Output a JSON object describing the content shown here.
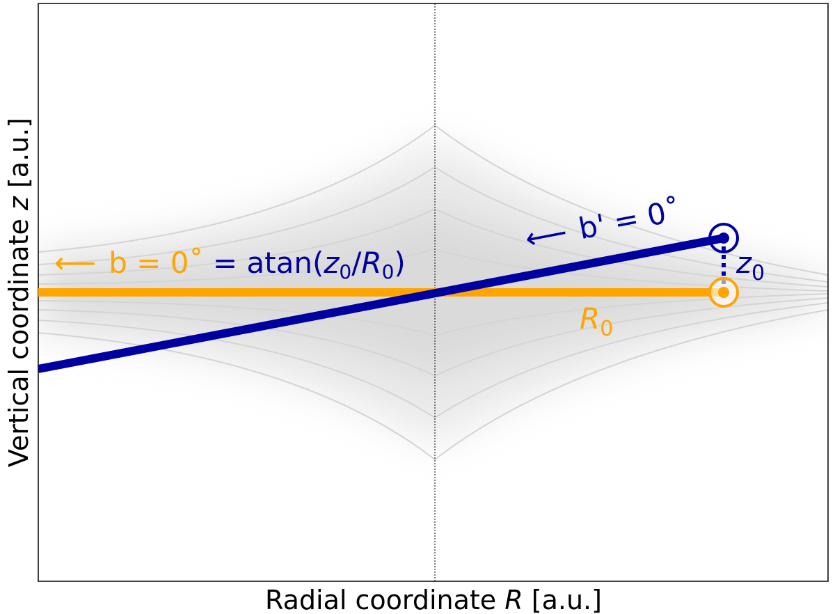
{
  "x_axis_label": {
    "text": "Radial coordinate ",
    "var": "R",
    "unit": " [a.u.]"
  },
  "y_axis_label": {
    "text": "Vertical coordinate ",
    "var": "z",
    "unit": " [a.u.]"
  },
  "b_label": {
    "arrow": "⟵",
    "text": "b = 0˚",
    "eq": " = atan(",
    "z": "z",
    "z_sub": "0",
    "slash": "/",
    "r": "R",
    "r_sub": "0",
    "close": ")"
  },
  "b_prime_label": {
    "arrow": "⟵",
    "text": "b' = 0˚"
  },
  "z0_label": {
    "var": "z",
    "sub": "0"
  },
  "r0_label": {
    "var": "R",
    "sub": "0"
  }
}
